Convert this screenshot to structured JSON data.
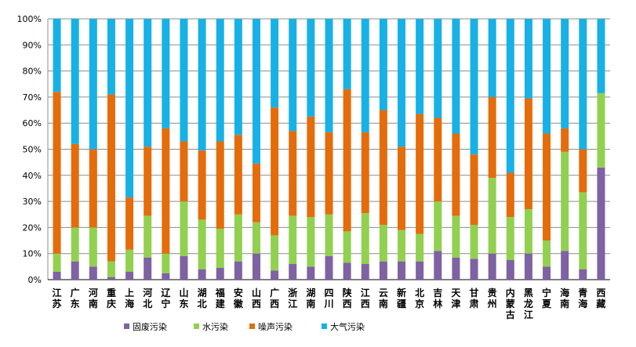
{
  "chart_data": {
    "type": "bar",
    "stacked": true,
    "percent_stacked": true,
    "categories": [
      "江苏",
      "广东",
      "河南",
      "重庆",
      "上海",
      "河北",
      "辽宁",
      "山东",
      "湖北",
      "福建",
      "安徽",
      "山西",
      "广西",
      "浙江",
      "湖南",
      "四川",
      "陕西",
      "江西",
      "云南",
      "新疆",
      "北京",
      "吉林",
      "天津",
      "甘肃",
      "贵州",
      "内蒙古",
      "黑龙江",
      "宁夏",
      "海南",
      "青海",
      "西藏"
    ],
    "y_ticks": [
      "0%",
      "10%",
      "20%",
      "30%",
      "40%",
      "50%",
      "60%",
      "70%",
      "80%",
      "90%",
      "100%"
    ],
    "ylim": [
      0,
      100
    ],
    "grid": true,
    "legend_position": "bottom",
    "series": [
      {
        "name": "固废污染",
        "color": "#7e62a2",
        "values": [
          3,
          7,
          5,
          1,
          3,
          8.5,
          2.5,
          9,
          4,
          4.5,
          7,
          10,
          3.5,
          6,
          5,
          9,
          6.5,
          6,
          7,
          7,
          7,
          11,
          8.5,
          8,
          10,
          7.5,
          10,
          5,
          11,
          4,
          43
        ]
      },
      {
        "name": "水污染",
        "color": "#92d050",
        "values": [
          7,
          13,
          15,
          6,
          8.5,
          16,
          7.5,
          21,
          19,
          15,
          18,
          12,
          13.5,
          18.5,
          19,
          16,
          12,
          19.5,
          14,
          12,
          10.5,
          19,
          16,
          13,
          29,
          16.5,
          17,
          10,
          38,
          29.5,
          28.5
        ]
      },
      {
        "name": "噪声污染",
        "color": "#e46c0a",
        "values": [
          62,
          32,
          30,
          64,
          20,
          26.5,
          48,
          23,
          26.5,
          33.5,
          30.5,
          22.5,
          49,
          32.5,
          38.5,
          31.5,
          54.5,
          31,
          44,
          32,
          46,
          32,
          31.5,
          27,
          31,
          17,
          42.5,
          41,
          9,
          16.5,
          0
        ]
      },
      {
        "name": "大气污染",
        "color": "#17b1e6",
        "values": [
          28,
          48,
          50,
          29,
          68.5,
          49,
          42,
          47,
          50.5,
          47,
          44.5,
          55.5,
          34,
          43,
          37.5,
          43.5,
          27,
          43.5,
          35,
          49,
          36.5,
          38,
          44,
          52,
          30,
          59,
          30.5,
          44,
          42,
          50,
          28.5
        ]
      }
    ]
  }
}
